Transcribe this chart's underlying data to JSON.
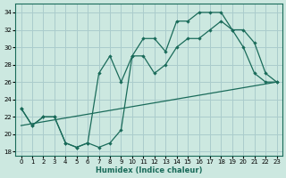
{
  "xlabel": "Humidex (Indice chaleur)",
  "bg_color": "#cce8e0",
  "grid_color": "#aacccc",
  "line_color": "#1a6b5a",
  "xlim": [
    -0.5,
    23.5
  ],
  "ylim": [
    17.5,
    35
  ],
  "yticks": [
    18,
    20,
    22,
    24,
    26,
    28,
    30,
    32,
    34
  ],
  "xticks": [
    0,
    1,
    2,
    3,
    4,
    5,
    6,
    7,
    8,
    9,
    10,
    11,
    12,
    13,
    14,
    15,
    16,
    17,
    18,
    19,
    20,
    21,
    22,
    23
  ],
  "line1_x": [
    0,
    1,
    2,
    3,
    4,
    5,
    6,
    7,
    8,
    9,
    10,
    11,
    12,
    13,
    14,
    15,
    16,
    17,
    18,
    19,
    20,
    21,
    22,
    23
  ],
  "line1_y": [
    23,
    21,
    22,
    22,
    19,
    18.5,
    19,
    18.5,
    19,
    20.5,
    29,
    29,
    27,
    28,
    30,
    31,
    31,
    32,
    33,
    32,
    30,
    27,
    26,
    26
  ],
  "line2_x": [
    0,
    1,
    2,
    3,
    4,
    5,
    6,
    7,
    8,
    9,
    10,
    11,
    12,
    13,
    14,
    15,
    16,
    17,
    18,
    19,
    20,
    21,
    22,
    23
  ],
  "line2_y": [
    23,
    21,
    22,
    22,
    19,
    18.5,
    19,
    27,
    29,
    26,
    29,
    31,
    31,
    29.5,
    33,
    33,
    34,
    34,
    34,
    32,
    32,
    30.5,
    27,
    26
  ],
  "line3_x": [
    0,
    23
  ],
  "line3_y": [
    21,
    26
  ]
}
